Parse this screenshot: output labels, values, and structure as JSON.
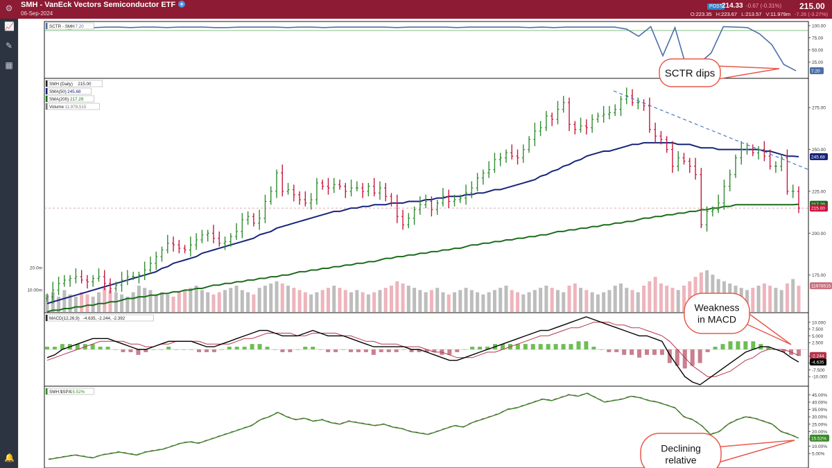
{
  "header": {
    "title": "SMH - VanEck Vectors Semiconductor ETF",
    "plus_icon": "plus-circle-icon",
    "date": "06-Sep-2024",
    "post_badge": "POST",
    "post_price": "214.33",
    "post_change": "-0.67 (-0.31%)",
    "last_price": "215.00",
    "ohlc": {
      "o_label": "O:",
      "o": "223.35",
      "h_label": "H:",
      "h": "223.67",
      "l_label": "L:",
      "l": "213.57",
      "v_label": "V:",
      "v": "11.979m",
      "chg": "-7.26 (-3.27%)"
    }
  },
  "sidebar": {
    "icons": [
      "settings-icon",
      "chart-icon",
      "tools-icon",
      "layout-icon",
      "bell-icon"
    ]
  },
  "colors": {
    "header": "#8c1b33",
    "up": "#2e8b2e",
    "down": "#c8143c",
    "sma50": "#15237a",
    "sma200": "#1b6b1b",
    "sctr": "#4d6fa8",
    "macd": "#000000",
    "signal": "#b5344a",
    "rel": "#3a8a2a",
    "callout": "#e8584a"
  },
  "chart_data": [
    {
      "type": "line",
      "panel": "SCTR",
      "legend": "SCTR - SMH",
      "legend_value": "7.20",
      "last_value_tag": "7.20",
      "ylim": [
        0,
        100
      ],
      "ticks": [
        "100.00",
        "75.00",
        "50.00",
        "25.00"
      ],
      "ref_line": 90,
      "series": [
        {
          "values": [
            97,
            95,
            93,
            97,
            96,
            97,
            97,
            96,
            97,
            97,
            96,
            97,
            97,
            97,
            96,
            96,
            97,
            97,
            97,
            97,
            96,
            97,
            97,
            96,
            97,
            97,
            97,
            97,
            97,
            96,
            97,
            97,
            97,
            97,
            96,
            97,
            97,
            97,
            97,
            97,
            96,
            97,
            96,
            97,
            97,
            97,
            97,
            97,
            93,
            78,
            98,
            38,
            96,
            10,
            22,
            44,
            98,
            97,
            96,
            83,
            61,
            20,
            7
          ]
        }
      ]
    },
    {
      "type": "bar",
      "panel": "Price",
      "legend": [
        {
          "label": "SMH (Daily)",
          "value": "215.00"
        },
        {
          "label": "SMA(50)",
          "value": "245.68"
        },
        {
          "label": "SMA(200)",
          "value": "217.29"
        },
        {
          "label": "Volume",
          "value": "11,978,515"
        }
      ],
      "ylim": [
        155,
        290
      ],
      "ticks": [
        "275.00",
        "250.00",
        "225.00",
        "200.00",
        "175.00"
      ],
      "last_price_tag": "215.00",
      "sma50_tag": "245.68",
      "sma200_tag": "217.29",
      "reference_price": 215,
      "trendline": {
        "from": [
          0.745,
          285
        ],
        "to": [
          1.0,
          238
        ]
      },
      "closes": [
        162,
        166,
        170,
        172,
        173,
        174,
        172,
        171,
        173,
        174,
        170,
        167,
        169,
        172,
        174,
        174,
        175,
        178,
        182,
        186,
        190,
        194,
        193,
        191,
        190,
        193,
        196,
        199,
        200,
        197,
        194,
        195,
        198,
        201,
        208,
        210,
        206,
        209,
        219,
        225,
        236,
        225,
        226,
        223,
        220,
        218,
        220,
        230,
        228,
        227,
        229,
        228,
        225,
        227,
        227,
        225,
        228,
        224,
        227,
        222,
        218,
        210,
        205,
        209,
        214,
        217,
        219,
        214,
        218,
        222,
        219,
        220,
        221,
        224,
        227,
        233,
        236,
        238,
        244,
        245,
        248,
        246,
        245,
        250,
        256,
        261,
        263,
        270,
        268,
        274,
        278,
        265,
        262,
        264,
        263,
        268,
        270,
        271,
        272,
        274,
        280,
        282,
        278,
        278,
        276,
        262,
        258,
        256,
        250,
        240,
        245,
        243,
        240,
        235,
        205,
        213,
        214,
        218,
        228,
        235,
        245,
        250,
        250,
        248,
        250,
        246,
        240,
        240,
        245,
        225,
        225,
        215
      ],
      "sma50": [
        158,
        159,
        160,
        161,
        162,
        163,
        164,
        165,
        166,
        167,
        168,
        169,
        170,
        171,
        172,
        173,
        174,
        175,
        176,
        177,
        179,
        180,
        182,
        183,
        184,
        185,
        186,
        188,
        189,
        190,
        191,
        192,
        193,
        194,
        195,
        196,
        197,
        199,
        200,
        201,
        203,
        204,
        205,
        206,
        207,
        208,
        209,
        210,
        211,
        212,
        213,
        213,
        214,
        215,
        215,
        216,
        216,
        217,
        217,
        217,
        218,
        218,
        218,
        219,
        219,
        219,
        220,
        220,
        221,
        221,
        222,
        222,
        222,
        223,
        223,
        224,
        224,
        225,
        226,
        226,
        227,
        228,
        229,
        230,
        231,
        232,
        234,
        235,
        237,
        238,
        240,
        241,
        243,
        244,
        246,
        247,
        248,
        249,
        249,
        250,
        251,
        252,
        253,
        253,
        254,
        254,
        254,
        254,
        254,
        254,
        253,
        253,
        253,
        252,
        251,
        251,
        251,
        250,
        250,
        250,
        250,
        250,
        250,
        250,
        250,
        249,
        249,
        248,
        247,
        246,
        246,
        245.68
      ],
      "sma200": [
        153,
        154,
        154,
        155,
        155,
        156,
        156,
        157,
        157,
        158,
        158,
        159,
        159,
        160,
        161,
        161,
        162,
        162,
        163,
        163,
        164,
        164,
        165,
        165,
        166,
        166,
        167,
        167,
        168,
        169,
        169,
        170,
        170,
        171,
        171,
        172,
        172,
        173,
        173,
        174,
        174,
        175,
        175,
        176,
        177,
        177,
        178,
        178,
        179,
        179,
        180,
        180,
        181,
        181,
        182,
        182,
        183,
        183,
        184,
        185,
        185,
        186,
        186,
        187,
        187,
        188,
        188,
        189,
        189,
        190,
        190,
        191,
        191,
        192,
        193,
        193,
        194,
        194,
        195,
        195,
        196,
        196,
        197,
        197,
        198,
        198,
        199,
        199,
        200,
        201,
        201,
        202,
        202,
        203,
        203,
        204,
        204,
        205,
        205,
        206,
        206,
        207,
        207,
        208,
        209,
        209,
        210,
        210,
        211,
        211,
        212,
        212,
        213,
        213,
        214,
        214,
        215,
        215,
        216,
        216,
        217,
        217,
        217,
        217,
        217,
        217,
        217,
        217,
        217,
        217,
        217,
        217.29
      ],
      "volume": {
        "ticks": [
          "20.0m",
          "10.00m"
        ],
        "last_tag": "11978515",
        "max": 30,
        "values": [
          8,
          9,
          7,
          10,
          8,
          7,
          9,
          8,
          7,
          9,
          11,
          10,
          9,
          8,
          7,
          9,
          12,
          11,
          10,
          8,
          9,
          8,
          7,
          9,
          10,
          11,
          12,
          10,
          9,
          8,
          9,
          10,
          11,
          12,
          10,
          9,
          8,
          11,
          12,
          13,
          14,
          13,
          12,
          11,
          10,
          9,
          8,
          9,
          10,
          11,
          12,
          11,
          10,
          9,
          10,
          9,
          8,
          9,
          10,
          11,
          12,
          14,
          13,
          12,
          11,
          10,
          9,
          10,
          11,
          9,
          8,
          9,
          10,
          11,
          10,
          9,
          8,
          9,
          10,
          11,
          12,
          10,
          9,
          8,
          9,
          10,
          11,
          12,
          11,
          10,
          9,
          12,
          13,
          11,
          10,
          9,
          8,
          9,
          10,
          12,
          13,
          11,
          10,
          9,
          12,
          14,
          16,
          13,
          12,
          11,
          10,
          12,
          14,
          16,
          18,
          19,
          17,
          15,
          14,
          13,
          12,
          11,
          10,
          11,
          12,
          13,
          12,
          11,
          10,
          13,
          15,
          11.98
        ]
      }
    },
    {
      "type": "line",
      "panel": "MACD",
      "legend": "MACD(12,26,9)",
      "legend_values": "-4.635, -2.244, -2.392",
      "ylim": [
        -12,
        12
      ],
      "ticks": [
        "10.000",
        "7.500",
        "5.000",
        "2.500",
        "-2.500",
        "-5.000",
        "-7.500",
        "-10.000"
      ],
      "macd_tag": "-4.635",
      "signal_tag": "-2.244",
      "series": [
        {
          "values": [
            -3,
            -2,
            0,
            1,
            2,
            3,
            4,
            4,
            4,
            3,
            2,
            1,
            0,
            0,
            1,
            2,
            3,
            3,
            3,
            3,
            2,
            1,
            1,
            2,
            3,
            4,
            5,
            6,
            7,
            7,
            6,
            5,
            5,
            5,
            6,
            7,
            6,
            5,
            5,
            5,
            4,
            3,
            2,
            1,
            1,
            1,
            1,
            1,
            0,
            0,
            -1,
            -2,
            -3,
            -4,
            -4,
            -3,
            -2,
            -1,
            0,
            1,
            2,
            3,
            4,
            5,
            6,
            7,
            7,
            8,
            9,
            10,
            11,
            12,
            11,
            10,
            9,
            8,
            7,
            6,
            5,
            5,
            4,
            3,
            -2,
            -6,
            -10,
            -12,
            -13,
            -11,
            -9,
            -7,
            -5,
            -3,
            -1,
            0,
            1,
            1,
            0,
            -1,
            -3,
            -4.635
          ]
        },
        {
          "values": [
            -4,
            -3,
            -2,
            -1,
            0,
            1,
            2,
            3,
            3,
            3,
            3,
            2,
            2,
            1,
            1,
            2,
            2,
            3,
            3,
            3,
            3,
            2,
            2,
            2,
            2,
            3,
            4,
            4,
            5,
            6,
            6,
            6,
            6,
            5,
            5,
            6,
            6,
            6,
            6,
            5,
            5,
            4,
            3,
            3,
            2,
            2,
            2,
            1,
            1,
            1,
            0,
            -1,
            -1,
            -2,
            -3,
            -3,
            -3,
            -2,
            -1,
            -1,
            0,
            1,
            2,
            3,
            4,
            5,
            5,
            6,
            7,
            8,
            8,
            9,
            10,
            10,
            10,
            9,
            9,
            8,
            8,
            7,
            6,
            5,
            3,
            0,
            -3,
            -6,
            -8,
            -10,
            -10,
            -9,
            -8,
            -6,
            -4,
            -3,
            -1,
            0,
            0,
            0,
            -1,
            -2.244
          ]
        }
      ],
      "histogram": [
        1,
        1,
        2,
        2,
        2,
        2,
        2,
        1,
        1,
        0,
        -1,
        -1,
        -2,
        -1,
        0,
        0,
        1,
        0,
        0,
        0,
        -1,
        -1,
        -1,
        0,
        1,
        1,
        1,
        2,
        2,
        1,
        0,
        -1,
        -1,
        0,
        1,
        1,
        0,
        -1,
        -1,
        0,
        -1,
        -1,
        -1,
        -2,
        -1,
        -1,
        -1,
        0,
        -1,
        -1,
        -1,
        -1,
        -2,
        -2,
        -1,
        0,
        1,
        1,
        1,
        2,
        2,
        2,
        2,
        2,
        2,
        2,
        2,
        2,
        2,
        2,
        3,
        3,
        1,
        0,
        -1,
        -1,
        -2,
        -2,
        -3,
        -2,
        -2,
        -2,
        -5,
        -6,
        -7,
        -6,
        -5,
        -1,
        1,
        2,
        3,
        3,
        3,
        3,
        2,
        1,
        0,
        -1,
        -2,
        -2.392
      ]
    },
    {
      "type": "line",
      "panel": "Relative",
      "legend": "SMH:$SPX",
      "legend_value": "15.52%",
      "last_value_tag": "15.52%",
      "ylim": [
        -2,
        48
      ],
      "ticks": [
        "45.00%",
        "40.00%",
        "35.00%",
        "30.00%",
        "25.00%",
        "20.00%",
        "15.00%",
        "10.00%",
        "5.00%"
      ],
      "series": [
        {
          "values": [
            1,
            2,
            3,
            4,
            3,
            2,
            4,
            5,
            6,
            5,
            4,
            6,
            7,
            8,
            10,
            12,
            13,
            12,
            14,
            16,
            18,
            20,
            22,
            24,
            28,
            30,
            33,
            30,
            28,
            29,
            27,
            28,
            26,
            25,
            27,
            26,
            25,
            24,
            25,
            23,
            22,
            20,
            19,
            18,
            20,
            22,
            24,
            23,
            26,
            28,
            30,
            32,
            35,
            36,
            38,
            40,
            42,
            41,
            43,
            45,
            44,
            46,
            43,
            40,
            41,
            42,
            44,
            43,
            41,
            40,
            38,
            36,
            30,
            28,
            24,
            18,
            20,
            25,
            28,
            30,
            29,
            27,
            25,
            20,
            18,
            15.52
          ]
        }
      ]
    }
  ],
  "callouts": [
    {
      "name": "sctr-callout",
      "text": "SCTR dips"
    },
    {
      "name": "macd-callout",
      "text": "Weakness in MACD"
    },
    {
      "name": "relative-callout",
      "text": "Declining relative"
    }
  ]
}
